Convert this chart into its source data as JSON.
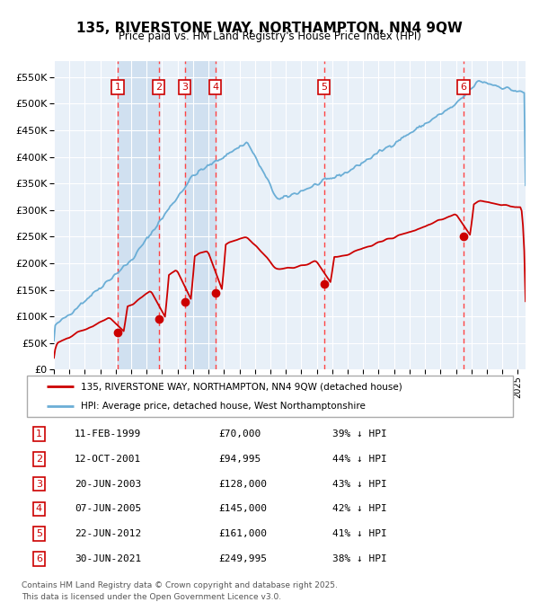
{
  "title": "135, RIVERSTONE WAY, NORTHAMPTON, NN4 9QW",
  "subtitle": "Price paid vs. HM Land Registry's House Price Index (HPI)",
  "legend_line1": "135, RIVERSTONE WAY, NORTHAMPTON, NN4 9QW (detached house)",
  "legend_line2": "HPI: Average price, detached house, West Northamptonshire",
  "footer_line1": "Contains HM Land Registry data © Crown copyright and database right 2025.",
  "footer_line2": "This data is licensed under the Open Government Licence v3.0.",
  "transactions": [
    {
      "id": 1,
      "date": "11-FEB-1999",
      "date_num": 1999.12,
      "price": 70000,
      "hpi_pct": "39% ↓ HPI"
    },
    {
      "id": 2,
      "date": "12-OCT-2001",
      "date_num": 2001.78,
      "price": 94995,
      "hpi_pct": "44% ↓ HPI"
    },
    {
      "id": 3,
      "date": "20-JUN-2003",
      "date_num": 2003.47,
      "price": 128000,
      "hpi_pct": "43% ↓ HPI"
    },
    {
      "id": 4,
      "date": "07-JUN-2005",
      "date_num": 2005.43,
      "price": 145000,
      "hpi_pct": "42% ↓ HPI"
    },
    {
      "id": 5,
      "date": "22-JUN-2012",
      "date_num": 2012.47,
      "price": 161000,
      "hpi_pct": "41% ↓ HPI"
    },
    {
      "id": 6,
      "date": "30-JUN-2021",
      "date_num": 2021.49,
      "price": 249995,
      "hpi_pct": "38% ↓ HPI"
    }
  ],
  "hpi_color": "#6baed6",
  "price_color": "#cc0000",
  "vline_color": "#ff4444",
  "background_plot": "#e8f0f8",
  "background_shade": "#d0e0f0",
  "grid_color": "#ffffff",
  "ylim": [
    0,
    580000
  ],
  "yticks": [
    0,
    50000,
    100000,
    150000,
    200000,
    250000,
    300000,
    350000,
    400000,
    450000,
    500000,
    550000
  ],
  "xlim_start": 1995.0,
  "xlim_end": 2025.5
}
